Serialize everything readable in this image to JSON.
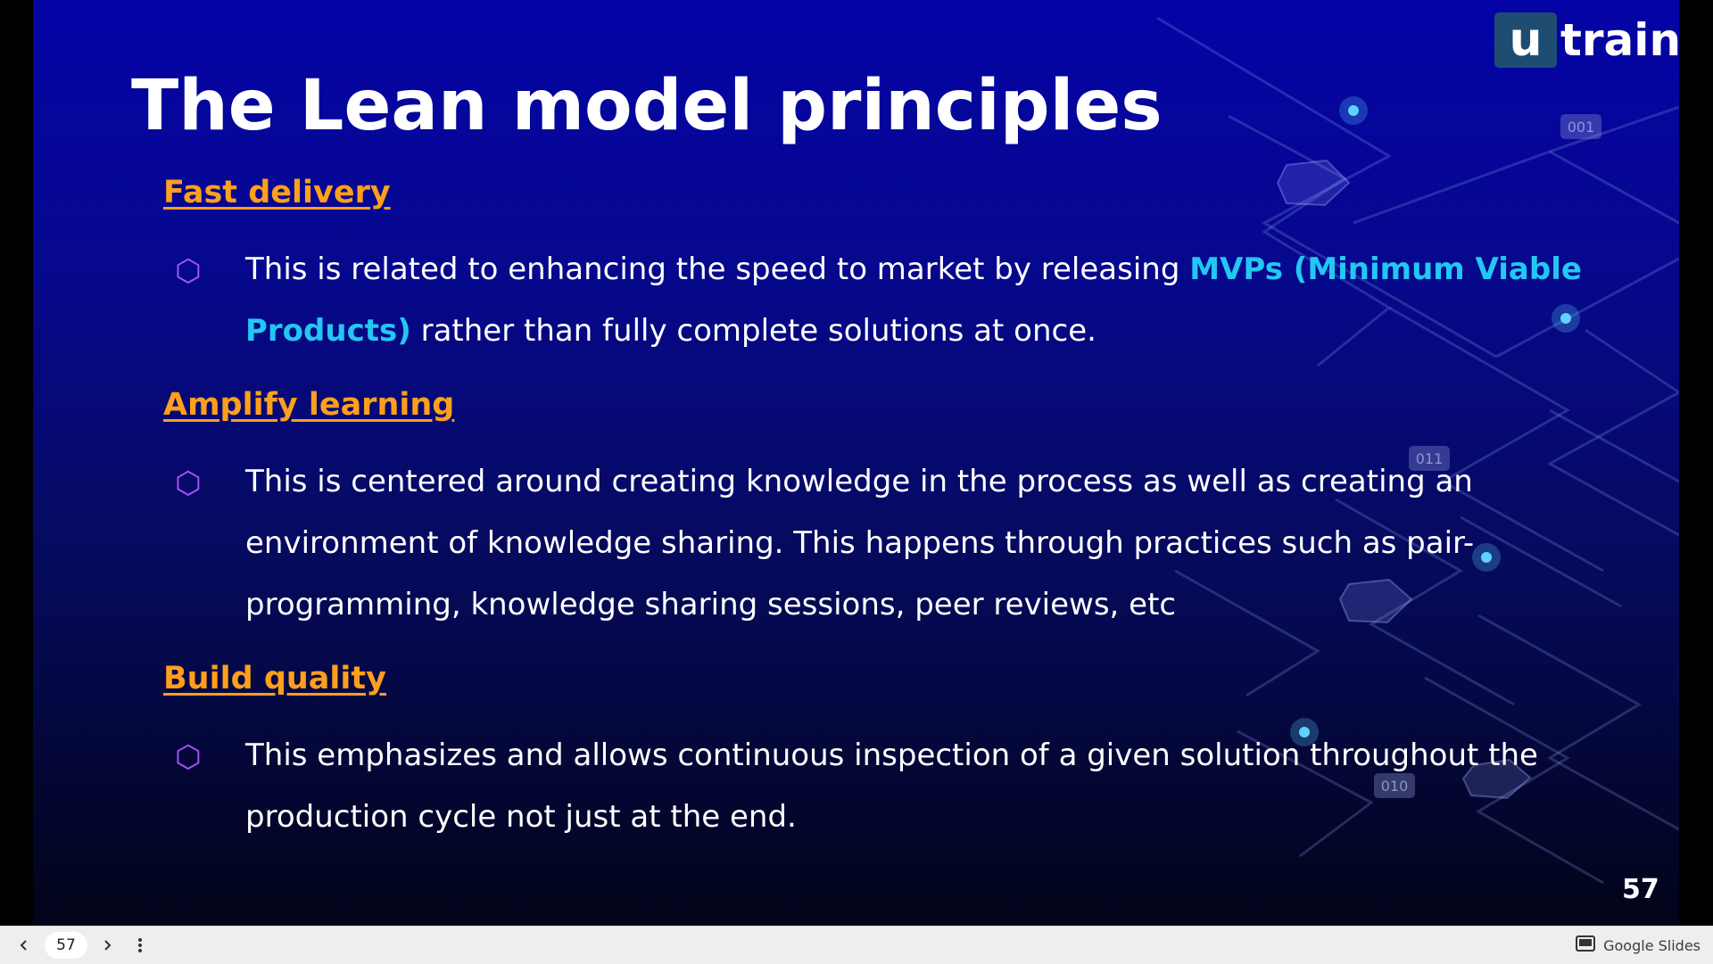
{
  "slide": {
    "logo": {
      "mark": "u",
      "word": "train"
    },
    "title": "The Lean model principles",
    "sections": [
      {
        "heading": "Fast delivery",
        "bullet_icon": "hexagon-outline-icon",
        "text_before": "This is related to enhancing the speed to market by releasing ",
        "highlight": "MVPs (Minimum Viable Products)",
        "text_after": " rather than fully complete solutions at once."
      },
      {
        "heading": "Amplify learning",
        "bullet_icon": "hexagon-outline-icon",
        "text": "This is centered around creating knowledge in the process as well as creating an environment of knowledge sharing. This happens through practices such as pair-programming, knowledge sharing sessions, peer reviews, etc"
      },
      {
        "heading": "Build quality",
        "bullet_icon": "hexagon-outline-icon",
        "text": "This emphasizes and allows continuous inspection of a given solution throughout the production cycle not just at the end."
      }
    ],
    "page_number": "57",
    "decoration_tags": [
      "001",
      "011",
      "010"
    ]
  },
  "viewer": {
    "current_page": "57",
    "prev_icon": "chevron-left-icon",
    "next_icon": "chevron-right-icon",
    "menu_icon": "more-vertical-icon",
    "brand_icon": "slides-icon",
    "brand_label": "Google Slides"
  },
  "colors": {
    "heading": "#ff9f1c",
    "highlight": "#22c7f2",
    "bullet": "#a855f7",
    "logo_box": "#1f4d72"
  }
}
